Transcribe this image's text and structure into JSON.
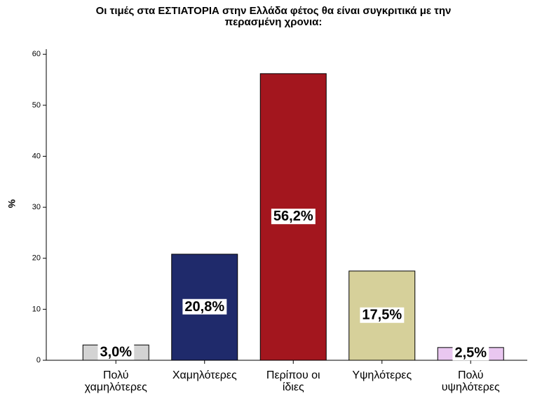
{
  "chart_data": {
    "type": "bar",
    "title": "Οι τιμές στα ΕΣΤΙΑΤΟΡΙΑ στην Ελλάδα φέτος θα είναι συγκριτικά με την\nπερασμένη χρονια:",
    "y_label": "%",
    "categories": [
      "Πολύ\nχαμηλότερες",
      "Χαμηλότερες",
      "Περίπου οι\nίδιες",
      "Υψηλότερες",
      "Πολύ\nυψηλότερες"
    ],
    "values": [
      3.0,
      20.8,
      56.2,
      17.5,
      2.5
    ],
    "value_labels": [
      "3,0%",
      "20,8%",
      "56,2%",
      "17,5%",
      "2,5%"
    ],
    "colors": [
      "#d3d3d3",
      "#1f2a6b",
      "#a3161e",
      "#d6d09a",
      "#e9c7f0"
    ],
    "ylim": [
      0,
      61
    ],
    "yticks": [
      0,
      10,
      20,
      30,
      40,
      50,
      60
    ],
    "grid": false
  }
}
